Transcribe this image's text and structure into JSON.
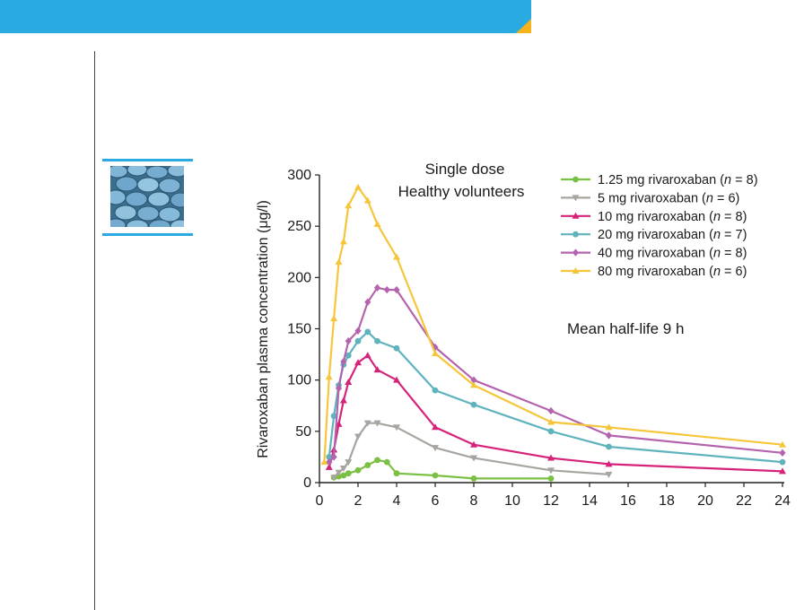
{
  "colors": {
    "banner": "#29abe2",
    "banner_corner": "#f6b21a",
    "rule": "#29abe2"
  },
  "thumbnail": {
    "icon": "blue-pills-photo"
  },
  "chart_data": {
    "type": "line",
    "title_lines": [
      "Single dose",
      "Healthy volunteers"
    ],
    "annotation": "Mean half-life 9 h",
    "xlabel": "",
    "ylabel": "Rivaroxaban plasma concentration (μg/l)",
    "xlim": [
      0,
      24
    ],
    "ylim": [
      0,
      300
    ],
    "xticks": [
      0,
      2,
      4,
      6,
      8,
      10,
      12,
      14,
      16,
      18,
      20,
      22,
      24
    ],
    "yticks": [
      0,
      50,
      100,
      150,
      200,
      250,
      300
    ],
    "grid": false,
    "legend_position": "top-right",
    "series": [
      {
        "dose": "1.25 mg rivaroxaban",
        "n": "8",
        "color": "#7ac143",
        "marker": "circle",
        "x": [
          0.75,
          1,
          1.25,
          1.5,
          2,
          2.5,
          3,
          3.5,
          4,
          6,
          8,
          12
        ],
        "y": [
          5,
          6,
          7,
          9,
          12,
          17,
          22,
          20,
          9,
          7,
          4,
          4
        ]
      },
      {
        "dose": "5 mg rivaroxaban",
        "n": "6",
        "color": "#a8a5a0",
        "marker": "triangle-down",
        "x": [
          0.75,
          1,
          1.25,
          1.5,
          2,
          2.5,
          3,
          4,
          6,
          8,
          12,
          15
        ],
        "y": [
          5,
          10,
          14,
          20,
          45,
          58,
          58,
          54,
          34,
          24,
          12,
          8
        ]
      },
      {
        "dose": "10 mg rivaroxaban",
        "n": "8",
        "color": "#d6237a",
        "marker": "triangle-up",
        "x": [
          0.5,
          0.75,
          1,
          1.25,
          1.5,
          2,
          2.5,
          3,
          4,
          6,
          8,
          12,
          15,
          24
        ],
        "y": [
          15,
          32,
          57,
          80,
          98,
          117,
          124,
          110,
          100,
          54,
          37,
          24,
          18,
          11
        ]
      },
      {
        "dose": "20 mg rivaroxaban",
        "n": "7",
        "color": "#5fb3bd",
        "marker": "circle",
        "x": [
          0.5,
          0.75,
          1,
          1.25,
          1.5,
          2,
          2.5,
          3,
          4,
          6,
          8,
          12,
          15,
          24
        ],
        "y": [
          25,
          65,
          95,
          115,
          124,
          138,
          147,
          138,
          131,
          90,
          76,
          50,
          35,
          20
        ]
      },
      {
        "dose": "40 mg rivaroxaban",
        "n": "8",
        "color": "#b464ae",
        "marker": "diamond",
        "x": [
          0.5,
          0.75,
          1,
          1.25,
          1.5,
          2,
          2.5,
          3,
          3.5,
          4,
          6,
          8,
          12,
          15,
          24
        ],
        "y": [
          20,
          25,
          92,
          118,
          138,
          148,
          176,
          190,
          188,
          188,
          132,
          100,
          70,
          46,
          29
        ]
      },
      {
        "dose": "80 mg rivaroxaban",
        "n": "6",
        "color": "#f5c53a",
        "marker": "triangle-up",
        "x": [
          0.25,
          0.5,
          0.75,
          1,
          1.25,
          1.5,
          2,
          2.5,
          3,
          4,
          6,
          8,
          12,
          15,
          24
        ],
        "y": [
          20,
          103,
          160,
          215,
          235,
          270,
          288,
          275,
          252,
          220,
          126,
          95,
          59,
          54,
          37
        ]
      }
    ]
  }
}
